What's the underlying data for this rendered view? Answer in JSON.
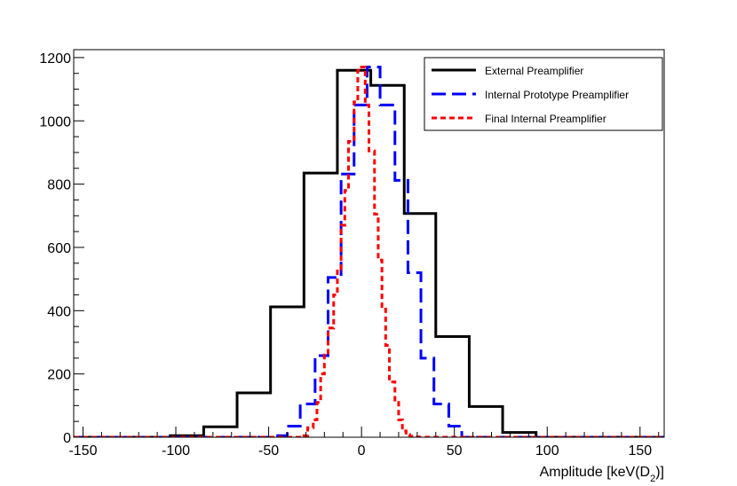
{
  "chart_data": {
    "type": "line",
    "title": "",
    "xlabel": "Amplitude [keV(D",
    "xlabel_sub": "2",
    "xlabel_end": ")]",
    "ylabel": "",
    "xlim": [
      -155,
      163
    ],
    "ylim": [
      0,
      1225
    ],
    "x_ticks": [
      -150,
      -100,
      -50,
      0,
      50,
      100,
      150
    ],
    "y_ticks": [
      0,
      200,
      400,
      600,
      800,
      1000,
      1200
    ],
    "grid": false,
    "legend_position": "top-right",
    "series": [
      {
        "name": "External Preamplifier",
        "color": "#000000",
        "dash": "solid",
        "bin_edges": [
          -155,
          -103,
          -85,
          -67,
          -49,
          -31,
          -13,
          5,
          23,
          40,
          58,
          76,
          94,
          163
        ],
        "values": [
          0,
          5,
          33,
          140,
          412,
          835,
          1160,
          1112,
          707,
          318,
          97,
          15,
          0
        ]
      },
      {
        "name": "Internal Prototype Preamplifier",
        "color": "#0000ff",
        "dash": "long-dash",
        "bin_edges": [
          -155,
          -47,
          -40,
          -33,
          -25,
          -18,
          -11,
          -4,
          3,
          10,
          18,
          25,
          32,
          39,
          47,
          54,
          163
        ],
        "values": [
          0,
          5,
          35,
          105,
          258,
          505,
          832,
          1050,
          1170,
          1050,
          812,
          520,
          250,
          105,
          35,
          0
        ]
      },
      {
        "name": "Final Internal Preamplifier",
        "color": "#ff0000",
        "dash": "short-dash",
        "bin_edges": [
          -155,
          -31,
          -29,
          -26,
          -24,
          -22,
          -20,
          -18,
          -15,
          -13,
          -11,
          -9,
          -7,
          -4,
          -2,
          0,
          2,
          4,
          7,
          9,
          11,
          13,
          15,
          18,
          20,
          22,
          24,
          26,
          29,
          31,
          163
        ],
        "values": [
          0,
          5,
          30,
          55,
          110,
          200,
          260,
          345,
          450,
          530,
          670,
          780,
          935,
          1060,
          1160,
          1170,
          1050,
          905,
          705,
          560,
          405,
          290,
          175,
          110,
          55,
          20,
          8,
          3,
          1,
          0
        ]
      }
    ]
  }
}
